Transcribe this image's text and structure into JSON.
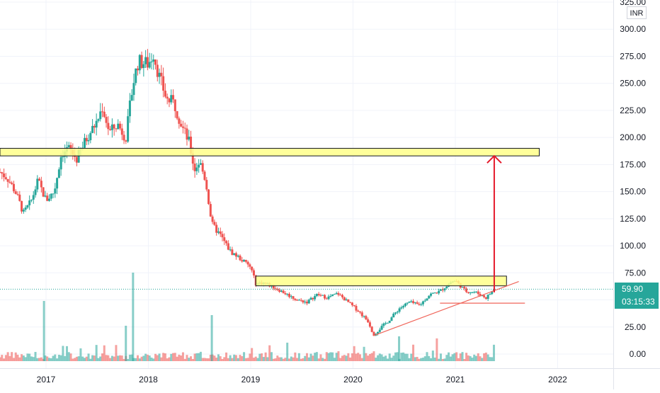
{
  "currency": "INR",
  "last_price": "59.90",
  "countdown": "03:15:33",
  "colors": {
    "up": "#26a69a",
    "down": "#ef5350",
    "zone_fill": "#ffff8a",
    "zone_stroke": "#131722",
    "arrow": "#e5192b",
    "trendline": "#f0655a",
    "grid": "#f0f3fa",
    "axis_bg": "#ffffff"
  },
  "chart_data": {
    "type": "candlestick",
    "price_axis": {
      "ticks": [
        "325.00",
        "300.00",
        "275.00",
        "250.00",
        "225.00",
        "200.00",
        "175.00",
        "150.00",
        "125.00",
        "100.00",
        "75.00",
        "50.00",
        "25.00",
        "0.00"
      ],
      "range": [
        0,
        325
      ]
    },
    "time_axis": {
      "labels": [
        "2017",
        "2018",
        "2019",
        "2020",
        "2021",
        "2022"
      ],
      "range": [
        2016.55,
        2023.0
      ]
    },
    "price_path": [
      [
        2016.55,
        168
      ],
      [
        2016.62,
        163
      ],
      [
        2016.7,
        150
      ],
      [
        2016.78,
        130
      ],
      [
        2016.85,
        140
      ],
      [
        2016.92,
        160
      ],
      [
        2017.0,
        142
      ],
      [
        2017.08,
        150
      ],
      [
        2017.15,
        185
      ],
      [
        2017.22,
        190
      ],
      [
        2017.3,
        180
      ],
      [
        2017.4,
        200
      ],
      [
        2017.5,
        215
      ],
      [
        2017.55,
        228
      ],
      [
        2017.62,
        205
      ],
      [
        2017.7,
        212
      ],
      [
        2017.78,
        200
      ],
      [
        2017.85,
        250
      ],
      [
        2017.9,
        270
      ],
      [
        2018.0,
        268
      ],
      [
        2018.05,
        278
      ],
      [
        2018.1,
        258
      ],
      [
        2018.18,
        235
      ],
      [
        2018.25,
        232
      ],
      [
        2018.33,
        210
      ],
      [
        2018.4,
        195
      ],
      [
        2018.45,
        170
      ],
      [
        2018.5,
        178
      ],
      [
        2018.56,
        160
      ],
      [
        2018.62,
        120
      ],
      [
        2018.7,
        110
      ],
      [
        2018.8,
        95
      ],
      [
        2018.9,
        88
      ],
      [
        2019.0,
        80
      ],
      [
        2019.05,
        65
      ],
      [
        2019.12,
        66
      ],
      [
        2019.2,
        63
      ],
      [
        2019.3,
        58
      ],
      [
        2019.45,
        50
      ],
      [
        2019.55,
        48
      ],
      [
        2019.65,
        55
      ],
      [
        2019.75,
        52
      ],
      [
        2019.85,
        56
      ],
      [
        2019.95,
        48
      ],
      [
        2020.05,
        40
      ],
      [
        2020.15,
        30
      ],
      [
        2020.2,
        18
      ],
      [
        2020.28,
        25
      ],
      [
        2020.36,
        32
      ],
      [
        2020.45,
        42
      ],
      [
        2020.55,
        48
      ],
      [
        2020.65,
        45
      ],
      [
        2020.75,
        55
      ],
      [
        2020.85,
        58
      ],
      [
        2020.95,
        66
      ],
      [
        2021.0,
        68
      ],
      [
        2021.05,
        63
      ],
      [
        2021.1,
        58
      ],
      [
        2021.2,
        57
      ],
      [
        2021.3,
        52
      ],
      [
        2021.38,
        60
      ]
    ],
    "annotations": {
      "resistance_zone_upper": {
        "x_range": [
          2016.55,
          2021.82
        ],
        "y_range": [
          183,
          190
        ]
      },
      "resistance_zone_lower": {
        "x_range": [
          2019.05,
          2021.5
        ],
        "y_range": [
          63,
          72
        ]
      },
      "support_trendline": {
        "from": [
          2020.2,
          17
        ],
        "to": [
          2021.62,
          67
        ]
      },
      "horizontal_line": {
        "from": [
          2020.85,
          47
        ],
        "to": [
          2021.68,
          47
        ]
      },
      "target_arrow": {
        "x": 2021.38,
        "from_y": 57,
        "to_y": 183
      },
      "last_price_line": 59.9
    }
  }
}
